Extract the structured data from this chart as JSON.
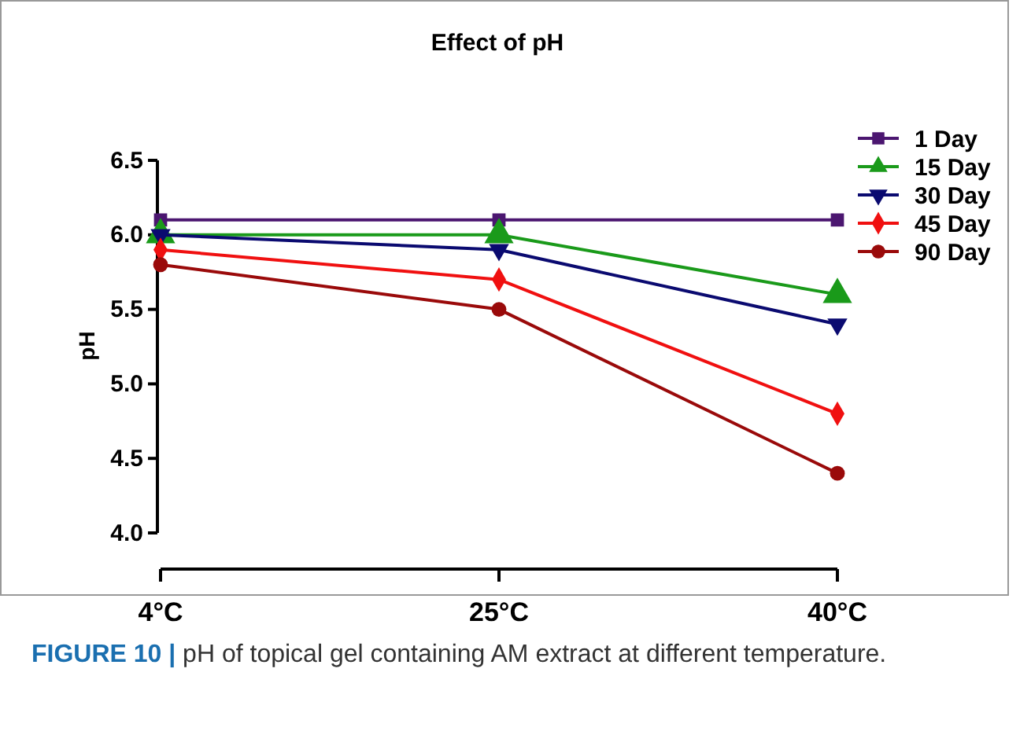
{
  "chart_data": {
    "type": "line",
    "title": "Effect of pH",
    "ylabel": "pH",
    "categories": [
      "4°C",
      "25°C",
      "40°C"
    ],
    "series": [
      {
        "name": "1 Day",
        "color": "#4b1670",
        "marker": "square",
        "values": [
          6.1,
          6.1,
          6.1
        ]
      },
      {
        "name": "15 Day",
        "color": "#1a9a1a",
        "marker": "triangle",
        "values": [
          6.0,
          6.0,
          5.6
        ]
      },
      {
        "name": "30 Day",
        "color": "#0a0a70",
        "marker": "triangle-down",
        "values": [
          6.0,
          5.9,
          5.4
        ]
      },
      {
        "name": "45 Day",
        "color": "#f01010",
        "marker": "diamond",
        "values": [
          5.9,
          5.7,
          4.8
        ]
      },
      {
        "name": "90 Day",
        "color": "#9a0a0a",
        "marker": "circle",
        "values": [
          5.8,
          5.5,
          4.4
        ]
      }
    ],
    "ylim": [
      4.0,
      6.5
    ],
    "yticks": [
      {
        "value": 4.0,
        "label": "4.0"
      },
      {
        "value": 4.5,
        "label": "4.5"
      },
      {
        "value": 5.0,
        "label": "5.0"
      },
      {
        "value": 5.5,
        "label": "5.5"
      },
      {
        "value": 6.0,
        "label": "6.0"
      },
      {
        "value": 6.5,
        "label": "6.5"
      }
    ],
    "legend": "top right",
    "grid": false,
    "line_style": "solid",
    "annotations": [
      "FIGURE 10 | pH of topical gel containing AM extract at different temperature."
    ]
  }
}
